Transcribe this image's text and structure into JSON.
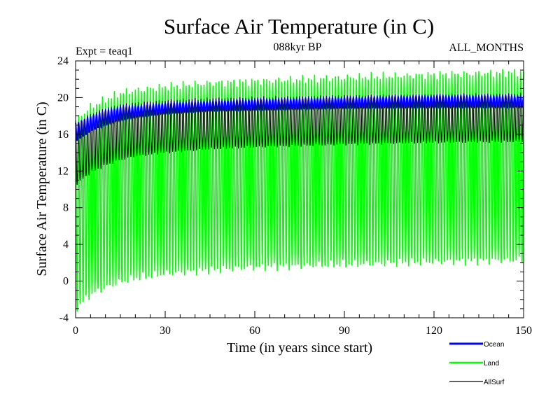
{
  "chart_data": {
    "type": "line",
    "title": "Surface Air Temperature (in C)",
    "subtitle": "088kyr BP",
    "left_note": "Expt = teaq1",
    "right_note": "ALL_MONTHS",
    "xlabel": "Time (in years since start)",
    "ylabel": "Surface Air Temperature (in C)",
    "xlim": [
      0,
      150
    ],
    "ylim": [
      -4,
      24
    ],
    "x_ticks": [
      0,
      30,
      60,
      90,
      120,
      150
    ],
    "y_ticks": [
      -4,
      0,
      4,
      8,
      12,
      16,
      20,
      24
    ],
    "samples_per_year": 12,
    "series": [
      {
        "name": "Ocean",
        "color": "#0000ff",
        "envelope_years": [
          0,
          5,
          10,
          15,
          20,
          30,
          45,
          60,
          90,
          120,
          150
        ],
        "max": [
          17.2,
          18.0,
          18.6,
          19.0,
          19.1,
          19.4,
          19.6,
          19.8,
          20.0,
          20.2,
          20.2
        ],
        "min": [
          15.2,
          16.3,
          17.1,
          17.6,
          17.9,
          18.3,
          18.6,
          18.7,
          18.9,
          19.0,
          19.0
        ]
      },
      {
        "name": "Land",
        "color": "#00ff00",
        "envelope_years": [
          0,
          5,
          10,
          15,
          20,
          30,
          45,
          60,
          90,
          120,
          150
        ],
        "max": [
          17.5,
          19.0,
          19.8,
          20.5,
          20.8,
          21.2,
          21.6,
          21.8,
          22.2,
          22.5,
          22.8
        ],
        "min": [
          -3.0,
          -1.5,
          -0.7,
          -0.1,
          0.3,
          0.8,
          1.2,
          1.5,
          1.8,
          2.1,
          2.3
        ]
      },
      {
        "name": "AllSurf",
        "color": "#000000",
        "envelope_years": [
          0,
          5,
          10,
          15,
          20,
          30,
          45,
          60,
          90,
          120,
          150
        ],
        "max": [
          17.0,
          18.2,
          18.8,
          19.2,
          19.4,
          19.7,
          19.9,
          20.0,
          20.2,
          20.3,
          20.4
        ],
        "min": [
          10.5,
          11.8,
          12.6,
          13.2,
          13.6,
          14.0,
          14.4,
          14.6,
          14.9,
          15.1,
          15.2
        ]
      }
    ]
  }
}
